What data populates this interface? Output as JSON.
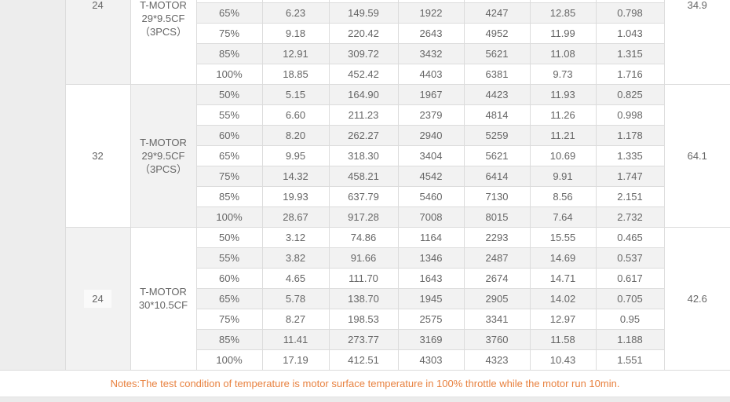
{
  "colors": {
    "page_background": "#ebebeb",
    "stripe_gray": "#f2f2f2",
    "border_gray": "#dcdcdc",
    "text_gray": "#666666",
    "note_orange": "#e8813f"
  },
  "table": {
    "note": "Notes:The test condition of temperature is motor surface temperature in 100% throttle while the motor run 10min.",
    "blocks": [
      {
        "voltage": "24",
        "model_lines": [
          "T-MOTOR",
          "29*9.5CF",
          "（3PCS）"
        ],
        "temperature": "34.9",
        "clipped_top": true,
        "rows": [
          [
            "65%",
            "6.23",
            "149.59",
            "1922",
            "4247",
            "12.85",
            "0.798"
          ],
          [
            "75%",
            "9.18",
            "220.42",
            "2643",
            "4952",
            "11.99",
            "1.043"
          ],
          [
            "85%",
            "12.91",
            "309.72",
            "3432",
            "5621",
            "11.08",
            "1.315"
          ],
          [
            "100%",
            "18.85",
            "452.42",
            "4403",
            "6381",
            "9.73",
            "1.716"
          ]
        ]
      },
      {
        "voltage": "32",
        "model_lines": [
          "T-MOTOR",
          "29*9.5CF",
          "（3PCS）"
        ],
        "temperature": "64.1",
        "clipped_top": false,
        "rows": [
          [
            "50%",
            "5.15",
            "164.90",
            "1967",
            "4423",
            "11.93",
            "0.825"
          ],
          [
            "55%",
            "6.60",
            "211.23",
            "2379",
            "4814",
            "11.26",
            "0.998"
          ],
          [
            "60%",
            "8.20",
            "262.27",
            "2940",
            "5259",
            "11.21",
            "1.178"
          ],
          [
            "65%",
            "9.95",
            "318.30",
            "3404",
            "5621",
            "10.69",
            "1.335"
          ],
          [
            "75%",
            "14.32",
            "458.21",
            "4542",
            "6414",
            "9.91",
            "1.747"
          ],
          [
            "85%",
            "19.93",
            "637.79",
            "5460",
            "7130",
            "8.56",
            "2.151"
          ],
          [
            "100%",
            "28.67",
            "917.28",
            "7008",
            "8015",
            "7.64",
            "2.732"
          ]
        ]
      },
      {
        "voltage": "24",
        "model_lines": [
          "T-MOTOR",
          "30*10.5CF"
        ],
        "temperature": "42.6",
        "clipped_top": false,
        "rows": [
          [
            "50%",
            "3.12",
            "74.86",
            "1164",
            "2293",
            "15.55",
            "0.465"
          ],
          [
            "55%",
            "3.82",
            "91.66",
            "1346",
            "2487",
            "14.69",
            "0.537"
          ],
          [
            "60%",
            "4.65",
            "111.70",
            "1643",
            "2674",
            "14.71",
            "0.617"
          ],
          [
            "65%",
            "5.78",
            "138.70",
            "1945",
            "2905",
            "14.02",
            "0.705"
          ],
          [
            "75%",
            "8.27",
            "198.53",
            "2575",
            "3341",
            "12.97",
            "0.95"
          ],
          [
            "85%",
            "11.41",
            "273.77",
            "3169",
            "3760",
            "11.58",
            "1.188"
          ],
          [
            "100%",
            "17.19",
            "412.51",
            "4303",
            "4323",
            "10.43",
            "1.551"
          ]
        ]
      }
    ]
  }
}
